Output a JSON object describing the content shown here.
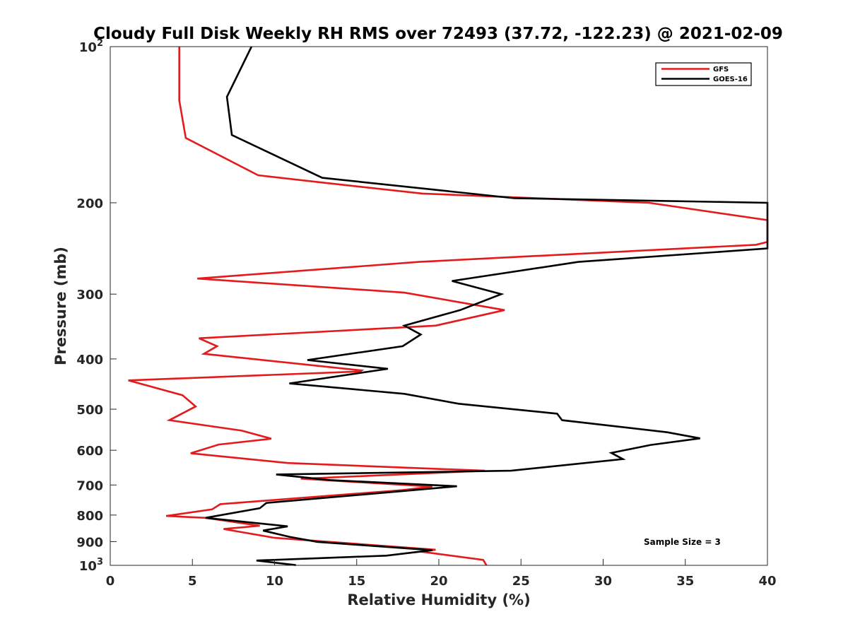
{
  "chart_data": {
    "type": "line",
    "title": "Cloudy Full Disk Weekly RH RMS over 72493 (37.72, -122.23) @ 2021-02-09",
    "xlabel": "Relative Humidity (%)",
    "ylabel": "Pressure (mb)",
    "xlim": [
      0,
      40
    ],
    "ylim": [
      100,
      1000
    ],
    "y_scale": "log",
    "y_reversed": true,
    "x_ticks": [
      "0",
      "5",
      "10",
      "15",
      "20",
      "25",
      "30",
      "35",
      "40"
    ],
    "y_ticks": [
      {
        "value": 100,
        "base": "10",
        "exp": "2"
      },
      {
        "value": 200,
        "label": "200"
      },
      {
        "value": 300,
        "label": "300"
      },
      {
        "value": 400,
        "label": "400"
      },
      {
        "value": 500,
        "label": "500"
      },
      {
        "value": 600,
        "label": "600"
      },
      {
        "value": 700,
        "label": "700"
      },
      {
        "value": 800,
        "label": "800"
      },
      {
        "value": 900,
        "label": "900"
      },
      {
        "value": 1000,
        "base": "10",
        "exp": "3"
      }
    ],
    "grid": false,
    "legend_position": "top-right",
    "annotation": "Sample Size = 3",
    "series": [
      {
        "name": "GFS",
        "color": "#e41a1c",
        "points": [
          [
            4.2,
            100
          ],
          [
            4.2,
            127
          ],
          [
            4.6,
            150
          ],
          [
            9.0,
            177
          ],
          [
            13.0,
            183
          ],
          [
            19.0,
            192
          ],
          [
            32.8,
            200
          ],
          [
            40.0,
            216
          ],
          [
            40.0,
            236
          ],
          [
            40.0,
            238
          ],
          [
            39.3,
            241
          ],
          [
            18.8,
            260
          ],
          [
            5.3,
            280
          ],
          [
            17.9,
            298
          ],
          [
            24.0,
            322
          ],
          [
            19.8,
            345
          ],
          [
            5.4,
            365
          ],
          [
            6.5,
            378
          ],
          [
            5.7,
            391
          ],
          [
            15.3,
            421
          ],
          [
            15.2,
            423
          ],
          [
            1.1,
            440
          ],
          [
            4.4,
            470
          ],
          [
            5.2,
            494
          ],
          [
            3.6,
            525
          ],
          [
            8.0,
            550
          ],
          [
            9.8,
            570
          ],
          [
            6.6,
            585
          ],
          [
            4.9,
            608
          ],
          [
            10.8,
            635
          ],
          [
            22.8,
            657
          ],
          [
            11.6,
            681
          ],
          [
            11.7,
            681
          ],
          [
            19.6,
            705
          ],
          [
            17.8,
            716
          ],
          [
            6.7,
            762
          ],
          [
            6.2,
            780
          ],
          [
            3.4,
            803
          ],
          [
            5.8,
            810
          ],
          [
            9.1,
            839
          ],
          [
            6.9,
            851
          ],
          [
            10.0,
            885
          ],
          [
            19.8,
            933
          ],
          [
            18.9,
            941
          ],
          [
            22.7,
            976
          ],
          [
            22.9,
            1000
          ]
        ]
      },
      {
        "name": "GOES-16",
        "color": "#000000",
        "points": [
          [
            8.6,
            100
          ],
          [
            7.1,
            125
          ],
          [
            7.4,
            148
          ],
          [
            12.9,
            179
          ],
          [
            24.6,
            196
          ],
          [
            40.0,
            200
          ],
          [
            40.0,
            245
          ],
          [
            28.5,
            260
          ],
          [
            20.8,
            283
          ],
          [
            23.8,
            300
          ],
          [
            21.3,
            322
          ],
          [
            17.9,
            345
          ],
          [
            18.9,
            359
          ],
          [
            17.8,
            378
          ],
          [
            12.0,
            402
          ],
          [
            16.9,
            418
          ],
          [
            10.9,
            446
          ],
          [
            17.9,
            467
          ],
          [
            21.2,
            488
          ],
          [
            27.2,
            510
          ],
          [
            27.5,
            525
          ],
          [
            33.9,
            554
          ],
          [
            35.9,
            569
          ],
          [
            32.9,
            586
          ],
          [
            30.5,
            607
          ],
          [
            31.2,
            624
          ],
          [
            24.4,
            657
          ],
          [
            10.1,
            668
          ],
          [
            13.4,
            685
          ],
          [
            21.1,
            704
          ],
          [
            18.7,
            715
          ],
          [
            9.5,
            758
          ],
          [
            9.1,
            776
          ],
          [
            5.8,
            810
          ],
          [
            10.8,
            841
          ],
          [
            9.3,
            857
          ],
          [
            10.9,
            881
          ],
          [
            12.6,
            901
          ],
          [
            19.6,
            935
          ],
          [
            16.8,
            958
          ],
          [
            8.9,
            979
          ],
          [
            11.3,
            999
          ]
        ]
      }
    ]
  }
}
